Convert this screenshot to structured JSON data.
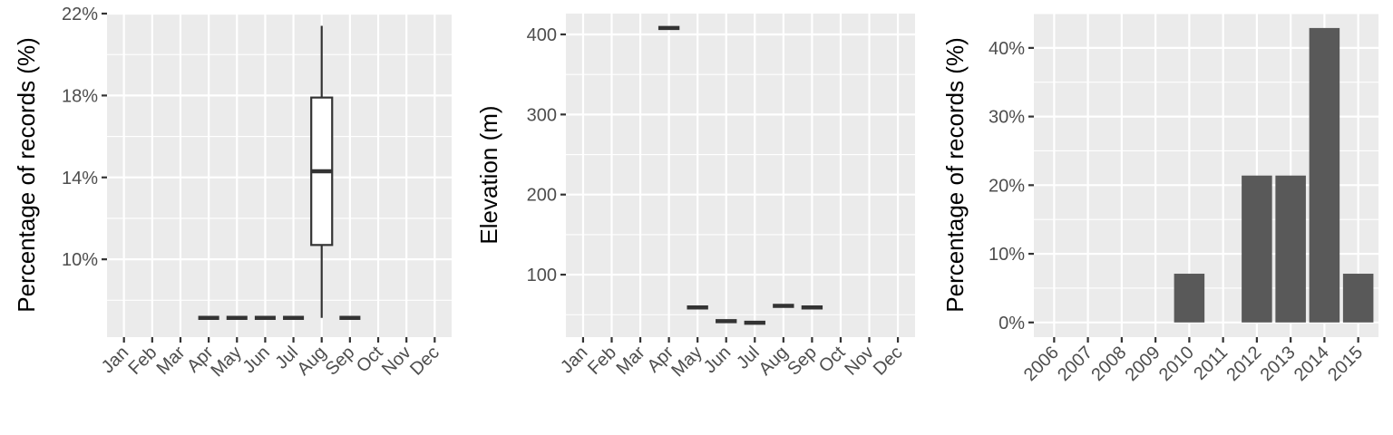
{
  "colors": {
    "panel_background": "#ebebeb",
    "grid": "#ffffff",
    "box_outline": "#333333",
    "bar_fill": "#595959",
    "tick_text": "#4d4d4d",
    "axis_title": "#000000"
  },
  "chart_data": [
    {
      "type": "box",
      "ylabel": "Percentage of records (%)",
      "xlabel": "",
      "categories": [
        "Jan",
        "Feb",
        "Mar",
        "Apr",
        "May",
        "Jun",
        "Jul",
        "Aug",
        "Sep",
        "Oct",
        "Nov",
        "Dec"
      ],
      "ylim": [
        6.2,
        22
      ],
      "y_ticks": [
        10,
        14,
        18,
        22
      ],
      "y_tick_labels": [
        "10%",
        "14%",
        "18%",
        "22%"
      ],
      "grid": true,
      "boxes": [
        {
          "category": "Apr",
          "min": 7.14,
          "q1": 7.14,
          "median": 7.14,
          "q3": 7.14,
          "max": 7.14
        },
        {
          "category": "May",
          "min": 7.14,
          "q1": 7.14,
          "median": 7.14,
          "q3": 7.14,
          "max": 7.14
        },
        {
          "category": "Jun",
          "min": 7.14,
          "q1": 7.14,
          "median": 7.14,
          "q3": 7.14,
          "max": 7.14
        },
        {
          "category": "Jul",
          "min": 7.14,
          "q1": 7.14,
          "median": 7.14,
          "q3": 7.14,
          "max": 7.14
        },
        {
          "category": "Aug",
          "min": 7.14,
          "q1": 10.7,
          "median": 14.3,
          "q3": 17.9,
          "max": 21.4
        },
        {
          "category": "Sep",
          "min": 7.14,
          "q1": 7.14,
          "median": 7.14,
          "q3": 7.14,
          "max": 7.14
        }
      ]
    },
    {
      "type": "box",
      "ylabel": "Elevation (m)",
      "xlabel": "",
      "categories": [
        "Jan",
        "Feb",
        "Mar",
        "Apr",
        "May",
        "Jun",
        "Jul",
        "Aug",
        "Sep",
        "Oct",
        "Nov",
        "Dec"
      ],
      "ylim": [
        22,
        426
      ],
      "y_ticks": [
        100,
        200,
        300,
        400
      ],
      "y_tick_labels": [
        "100",
        "200",
        "300",
        "400"
      ],
      "grid": true,
      "boxes": [
        {
          "category": "Apr",
          "min": 408,
          "q1": 408,
          "median": 408,
          "q3": 408,
          "max": 408
        },
        {
          "category": "May",
          "min": 59,
          "q1": 59,
          "median": 59,
          "q3": 59,
          "max": 59
        },
        {
          "category": "Jun",
          "min": 42,
          "q1": 42,
          "median": 42,
          "q3": 42,
          "max": 42
        },
        {
          "category": "Jul",
          "min": 40,
          "q1": 40,
          "median": 40,
          "q3": 40,
          "max": 40
        },
        {
          "category": "Aug",
          "min": 61,
          "q1": 61,
          "median": 61,
          "q3": 61,
          "max": 61
        },
        {
          "category": "Sep",
          "min": 59,
          "q1": 59,
          "median": 59,
          "q3": 59,
          "max": 59
        }
      ]
    },
    {
      "type": "bar",
      "ylabel": "Percentage of records (%)",
      "xlabel": "",
      "categories": [
        "2006",
        "2007",
        "2008",
        "2009",
        "2010",
        "2011",
        "2012",
        "2013",
        "2014",
        "2015"
      ],
      "values": [
        0,
        0,
        0,
        0,
        7.1,
        0,
        21.4,
        21.4,
        42.9,
        7.1
      ],
      "ylim": [
        -2.14,
        45.0
      ],
      "y_ticks": [
        0,
        10,
        20,
        30,
        40
      ],
      "y_tick_labels": [
        "0%",
        "10%",
        "20%",
        "30%",
        "40%"
      ],
      "grid": true
    }
  ]
}
